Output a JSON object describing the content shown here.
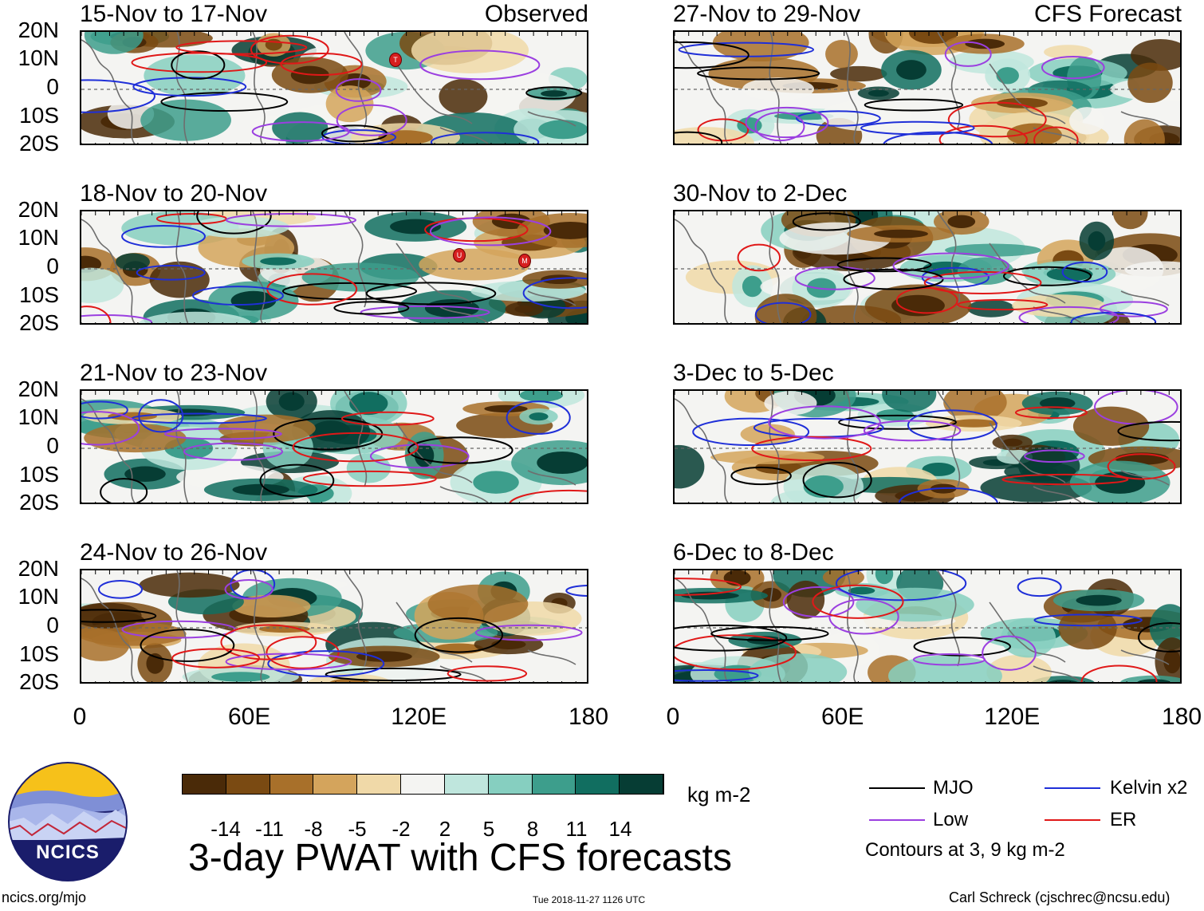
{
  "panels": [
    {
      "title": "15-Nov to 17-Nov",
      "label": "Observed"
    },
    {
      "title": "18-Nov to 20-Nov",
      "label": ""
    },
    {
      "title": "21-Nov to 23-Nov",
      "label": ""
    },
    {
      "title": "24-Nov to 26-Nov",
      "label": ""
    },
    {
      "title": "27-Nov to 29-Nov",
      "label": "CFS Forecast"
    },
    {
      "title": "30-Nov to 2-Dec",
      "label": ""
    },
    {
      "title": "3-Dec to 5-Dec",
      "label": ""
    },
    {
      "title": "6-Dec to 8-Dec",
      "label": ""
    }
  ],
  "lat_ticks": [
    "20N",
    "10N",
    "0",
    "10S",
    "20S"
  ],
  "lon_ticks": [
    "0",
    "60E",
    "120E",
    "180"
  ],
  "colorbar": {
    "colors": [
      "#4a2a08",
      "#7a4a12",
      "#a8702a",
      "#d4a45c",
      "#f0d9a8",
      "#f4f4f2",
      "#bfe6dd",
      "#86cfc0",
      "#3d9e8c",
      "#116e60",
      "#063d34"
    ],
    "labels": [
      "-14",
      "-11",
      "-8",
      "-5",
      "-2",
      "2",
      "5",
      "8",
      "11",
      "14"
    ],
    "units": "kg m-2"
  },
  "legend": {
    "items": [
      {
        "label": "MJO",
        "color": "#000000"
      },
      {
        "label": "Kelvin x2",
        "color": "#1f2fd8"
      },
      {
        "label": "Low",
        "color": "#9b3fe0"
      },
      {
        "label": "ER",
        "color": "#e01818"
      }
    ],
    "note": "Contours at 3, 9 kg m-2"
  },
  "title": "3-day PWAT with CFS forecasts",
  "footer": {
    "left": "ncics.org/mjo",
    "center": "Tue 2018-11-27 1126 UTC",
    "right": "Carl Schreck (cjschrec@ncsu.edu)"
  },
  "logo": {
    "text": "NCICS"
  },
  "storms": [
    {
      "panel": 0,
      "label": "T"
    },
    {
      "panel": 1,
      "label": "U"
    },
    {
      "panel": 1,
      "label": "M"
    }
  ]
}
